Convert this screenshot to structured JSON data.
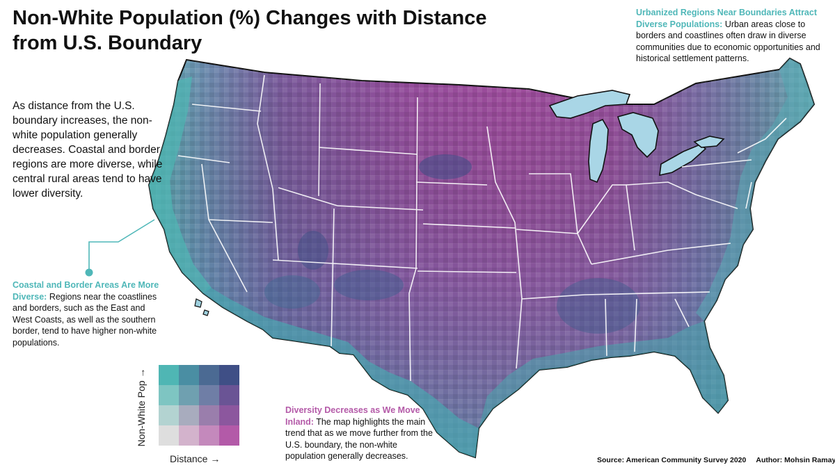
{
  "title": "Non-White Population (%) Changes with Distance from U.S. Boundary",
  "intro": "As distance from the U.S. boundary increases, the non-white population generally decreases. Coastal and border regions are more diverse, while central rural areas tend to have lower diversity.",
  "annotations": {
    "urban": {
      "head": "Urbanized Regions Near Boundaries Attract Diverse Populations:",
      "body": " Urban areas close to borders and coastlines often draw in diverse communities due to economic opportunities and historical settlement patterns."
    },
    "coastal": {
      "head": "Coastal and Border Areas Are More Diverse:",
      "body": " Regions near the coastlines and borders, such as the East and West Coasts, as well as the southern border, tend to have higher non-white populations."
    },
    "inland": {
      "head": "Diversity Decreases as We Move Inland:",
      "body": " The map highlights the main trend that as we move further from the U.S. boundary, the non-white population generally decreases."
    }
  },
  "legend": {
    "y_label": "Non-White Pop →",
    "x_label": "Distance →",
    "colors": [
      [
        "#4fb6b4",
        "#4a8ea3",
        "#4b6a93",
        "#3f4f86"
      ],
      [
        "#7ec5c2",
        "#6fa0b0",
        "#6f7ea6",
        "#6a5495"
      ],
      [
        "#b3d3d1",
        "#a8acbe",
        "#9a7eac",
        "#8c579e"
      ],
      [
        "#dedede",
        "#d3b3cc",
        "#c489bc",
        "#b35aa8"
      ]
    ]
  },
  "source": "Source: American Community Survey 2020",
  "author": "Author: Mohsin Ramay",
  "colors": {
    "coastal_teal": "#4fb7b8",
    "inland_magenta": "#b45aa8",
    "water": "#a9d6e6"
  }
}
